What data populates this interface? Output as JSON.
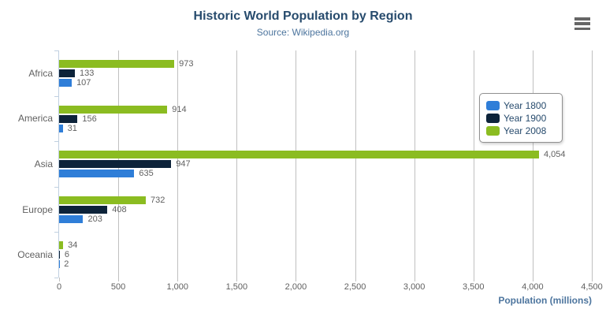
{
  "header": {
    "title": "Historic World Population by Region",
    "subtitle": "Source: Wikipedia.org"
  },
  "export_menu": {
    "icon": "hamburger-menu"
  },
  "chart_data": {
    "type": "bar",
    "orientation": "horizontal",
    "title": "Historic World Population by Region",
    "subtitle": "Source: Wikipedia.org",
    "categories": [
      "Africa",
      "America",
      "Asia",
      "Europe",
      "Oceania"
    ],
    "series": [
      {
        "name": "Year 1800",
        "color": "#2f7ed8",
        "values": [
          107,
          31,
          635,
          203,
          2
        ]
      },
      {
        "name": "Year 1900",
        "color": "#0d233a",
        "values": [
          133,
          156,
          947,
          408,
          6
        ]
      },
      {
        "name": "Year 2008",
        "color": "#8bbc21",
        "values": [
          973,
          914,
          4054,
          732,
          34
        ]
      }
    ],
    "bar_order_top_to_bottom": [
      2,
      1,
      0
    ],
    "data_labels_visible": true,
    "value_axis": {
      "label": "Population (millions)",
      "min": 0,
      "max": 4500,
      "tick_interval": 500,
      "tick_labels": [
        "0",
        "500",
        "1,000",
        "1,500",
        "2,000",
        "2,500",
        "3,000",
        "3,500",
        "4,000",
        "4,500"
      ]
    },
    "grid": true,
    "legend": {
      "position": "right",
      "items": [
        "Year 1800",
        "Year 1900",
        "Year 2008"
      ]
    }
  },
  "style_colors": {
    "title": "#274b6d",
    "subtitle": "#4d759e",
    "axis_title": "#4d759e",
    "axis_labels": "#606060",
    "data_labels": "#606060",
    "gridline": "#c0c0c0",
    "category_axis_line": "#c0d0e0",
    "legend_border": "#909090",
    "menu_icon": "#666666"
  }
}
